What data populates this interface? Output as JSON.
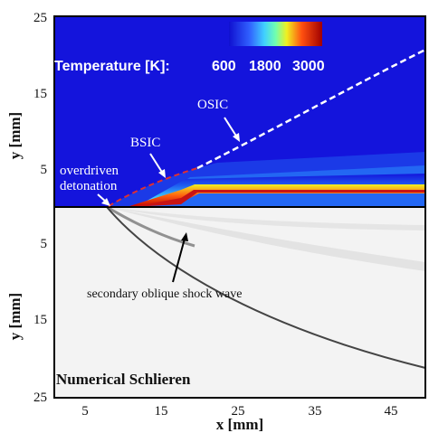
{
  "axes": {
    "x_label": "x [mm]",
    "y_label_top": "y [mm]",
    "y_label_bottom": "y [mm]",
    "x_ticks": [
      "5",
      "15",
      "25",
      "35",
      "45"
    ],
    "y_ticks_top": [
      "25",
      "15",
      "5"
    ],
    "y_ticks_bottom": [
      "5",
      "15",
      "25"
    ]
  },
  "legend": {
    "title": "Temperature [K]:",
    "values": [
      "600",
      "1800",
      "3000"
    ]
  },
  "annotations": {
    "osic": "OSIC",
    "bsic": "BSIC",
    "overdriven_1": "overdriven",
    "overdriven_2": "detonation",
    "secondary": "secondary oblique shock wave",
    "schlieren": "Numerical Schlieren"
  },
  "colors": {
    "background_flow": "#1414dc",
    "hot_layer": "#c81414",
    "bsic_line": "#e03030",
    "osic_line": "#ffffff"
  }
}
